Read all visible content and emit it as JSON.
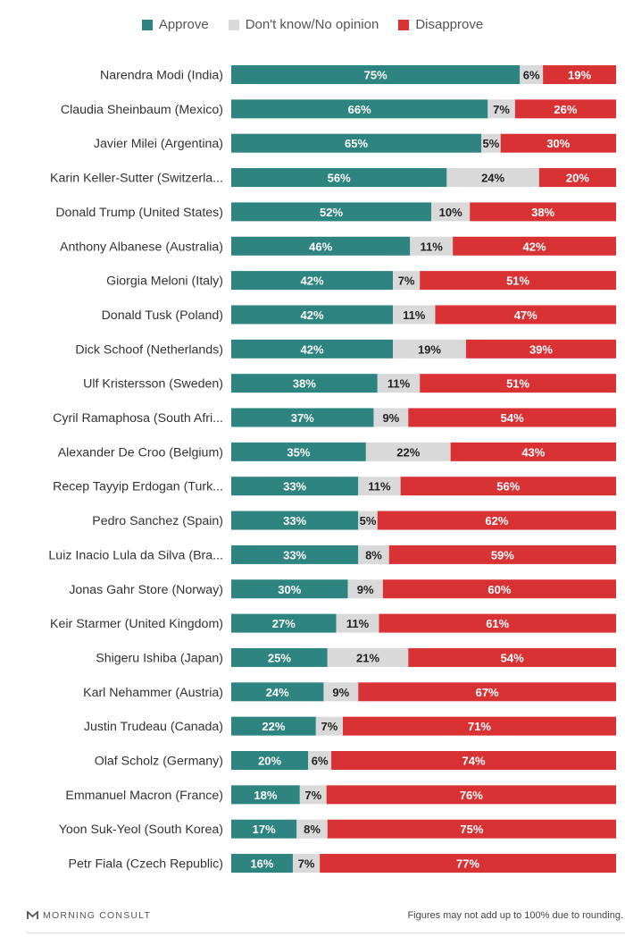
{
  "legend": {
    "approve": "Approve",
    "dont_know": "Don't know/No opinion",
    "disapprove": "Disapprove"
  },
  "colors": {
    "approve": "#2e8481",
    "dont_know": "#d9d9d9",
    "disapprove": "#d93235"
  },
  "footer": {
    "brand": "MORNING CONSULT",
    "note": "Figures may not add up to 100% due to rounding."
  },
  "chart_data": {
    "type": "bar",
    "orientation": "horizontal",
    "stacked": true,
    "categories": [
      "Narendra Modi (India)",
      "Claudia Sheinbaum (Mexico)",
      "Javier Milei (Argentina)",
      "Karin Keller-Sutter (Switzerla...",
      "Donald Trump (United States)",
      "Anthony Albanese (Australia)",
      "Giorgia Meloni (Italy)",
      "Donald Tusk (Poland)",
      "Dick Schoof (Netherlands)",
      "Ulf Kristersson (Sweden)",
      "Cyril Ramaphosa (South Afri...",
      "Alexander De Croo (Belgium)",
      "Recep Tayyip Erdogan (Turk...",
      "Pedro Sanchez (Spain)",
      "Luiz Inacio Lula da Silva (Bra...",
      "Jonas Gahr Store (Norway)",
      "Keir Starmer (United Kingdom)",
      "Shigeru Ishiba (Japan)",
      "Karl Nehammer (Austria)",
      "Justin Trudeau (Canada)",
      "Olaf Scholz (Germany)",
      "Emmanuel Macron (France)",
      "Yoon Suk-Yeol (South Korea)",
      "Petr Fiala (Czech Republic)"
    ],
    "series": [
      {
        "name": "Approve",
        "values": [
          75,
          66,
          65,
          56,
          52,
          46,
          42,
          42,
          42,
          38,
          37,
          35,
          33,
          33,
          33,
          30,
          27,
          25,
          24,
          22,
          20,
          18,
          17,
          16
        ]
      },
      {
        "name": "Don't know/No opinion",
        "values": [
          6,
          7,
          5,
          24,
          10,
          11,
          7,
          11,
          19,
          11,
          9,
          22,
          11,
          5,
          8,
          9,
          11,
          21,
          9,
          7,
          6,
          7,
          8,
          7
        ]
      },
      {
        "name": "Disapprove",
        "values": [
          19,
          26,
          30,
          20,
          38,
          42,
          51,
          47,
          39,
          51,
          54,
          43,
          56,
          62,
          59,
          60,
          61,
          54,
          67,
          71,
          74,
          76,
          75,
          77
        ]
      }
    ],
    "value_format": "percent",
    "legend_position": "top",
    "grid": false
  }
}
